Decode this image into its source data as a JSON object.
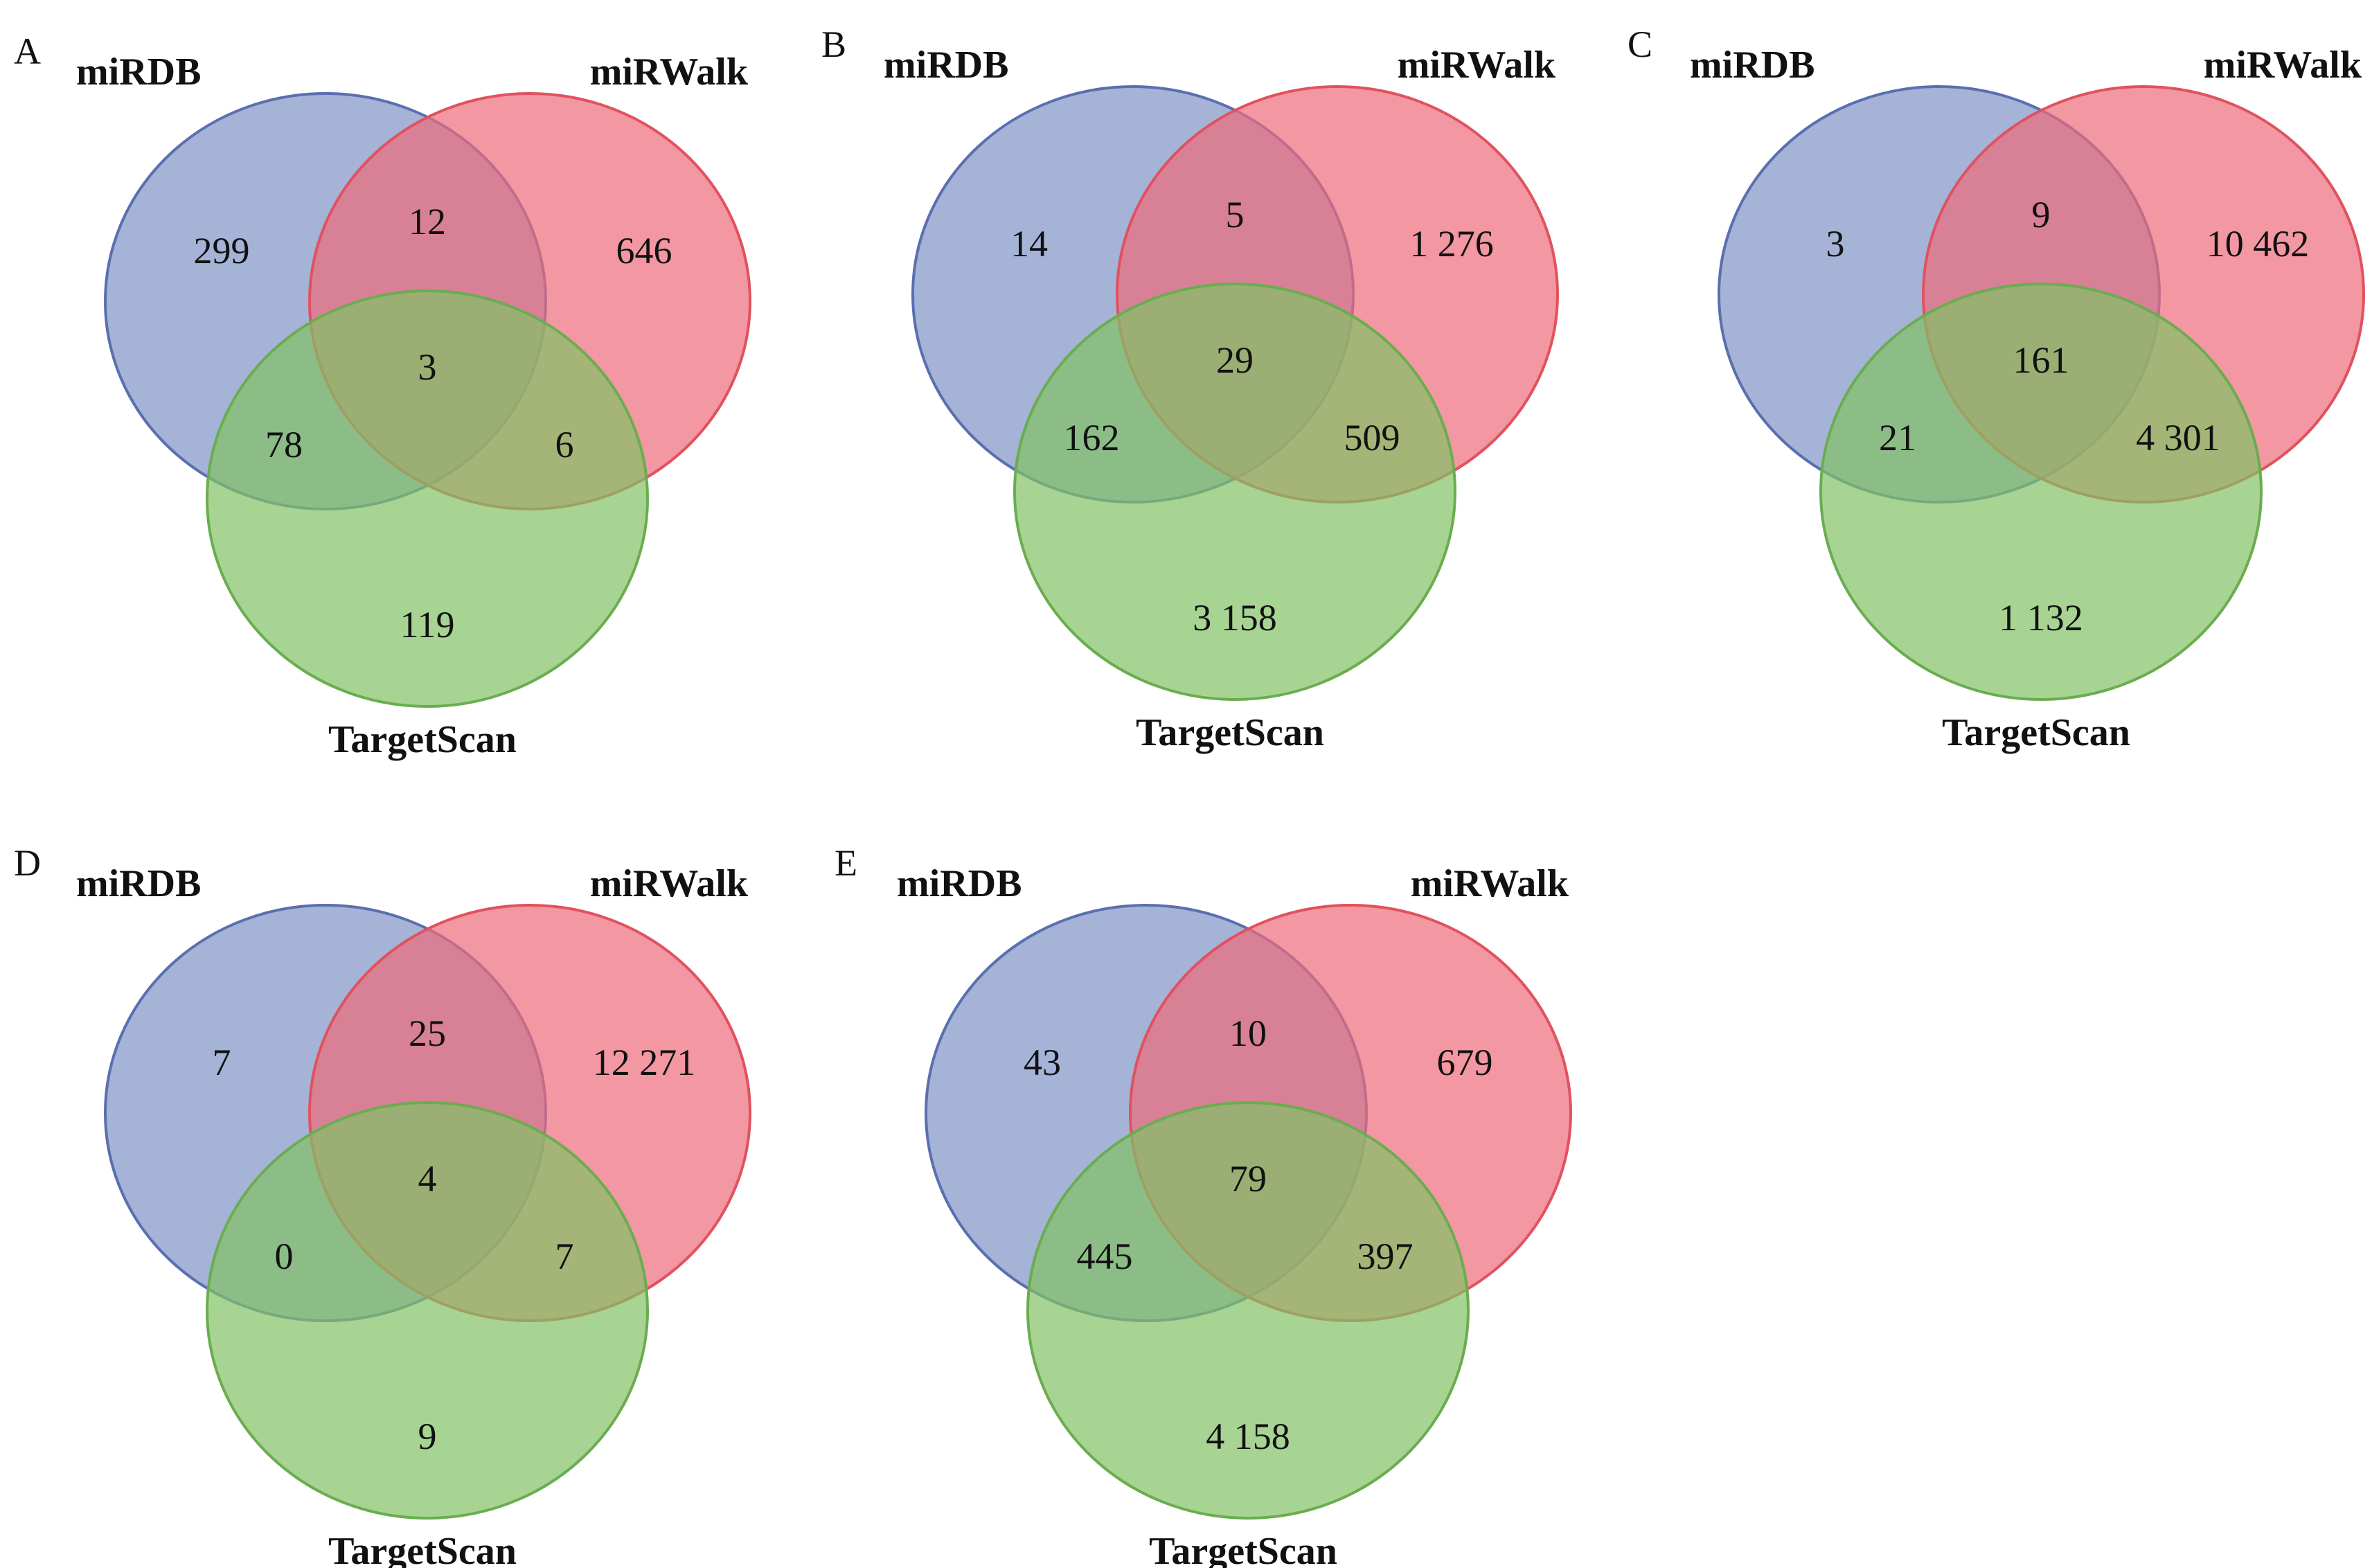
{
  "chart_data": {
    "type": "venn",
    "set_names": [
      "miRDB",
      "miRWalk",
      "TargetScan"
    ],
    "colors": {
      "miRDB": "#7f93c6",
      "miRWalk": "#ee6b7b",
      "TargetScan": "#82c265",
      "miRDB_stroke": "#5a6fb0",
      "miRWalk_stroke": "#e0525e",
      "TargetScan_stroke": "#6aad4f"
    },
    "panels": [
      {
        "letter": "A",
        "labels": {
          "miRDB": "miRDB",
          "miRWalk": "miRWalk",
          "TargetScan": "TargetScan"
        },
        "regions": {
          "miRDB_only": "299",
          "miRWalk_only": "646",
          "TargetScan_only": "119",
          "miRDB_miRWalk": "12",
          "miRDB_TargetScan": "78",
          "miRWalk_TargetScan": "6",
          "all_three": "3"
        }
      },
      {
        "letter": "B",
        "labels": {
          "miRDB": "miRDB",
          "miRWalk": "miRWalk",
          "TargetScan": "TargetScan"
        },
        "regions": {
          "miRDB_only": "14",
          "miRWalk_only": "1 276",
          "TargetScan_only": "3 158",
          "miRDB_miRWalk": "5",
          "miRDB_TargetScan": "162",
          "miRWalk_TargetScan": "509",
          "all_three": "29"
        }
      },
      {
        "letter": "C",
        "labels": {
          "miRDB": "miRDB",
          "miRWalk": "miRWalk",
          "TargetScan": "TargetScan"
        },
        "regions": {
          "miRDB_only": "3",
          "miRWalk_only": "10 462",
          "TargetScan_only": "1 132",
          "miRDB_miRWalk": "9",
          "miRDB_TargetScan": "21",
          "miRWalk_TargetScan": "4 301",
          "all_three": "161"
        }
      },
      {
        "letter": "D",
        "labels": {
          "miRDB": "miRDB",
          "miRWalk": "miRWalk",
          "TargetScan": "TargetScan"
        },
        "regions": {
          "miRDB_only": "7",
          "miRWalk_only": "12 271",
          "TargetScan_only": "9",
          "miRDB_miRWalk": "25",
          "miRDB_TargetScan": "0",
          "miRWalk_TargetScan": "7",
          "all_three": "4"
        }
      },
      {
        "letter": "E",
        "labels": {
          "miRDB": "miRDB",
          "miRWalk": "miRWalk",
          "TargetScan": "TargetScan"
        },
        "regions": {
          "miRDB_only": "43",
          "miRWalk_only": "679",
          "TargetScan_only": "4 158",
          "miRDB_miRWalk": "10",
          "miRDB_TargetScan": "445",
          "miRWalk_TargetScan": "397",
          "all_three": "79"
        }
      }
    ]
  }
}
